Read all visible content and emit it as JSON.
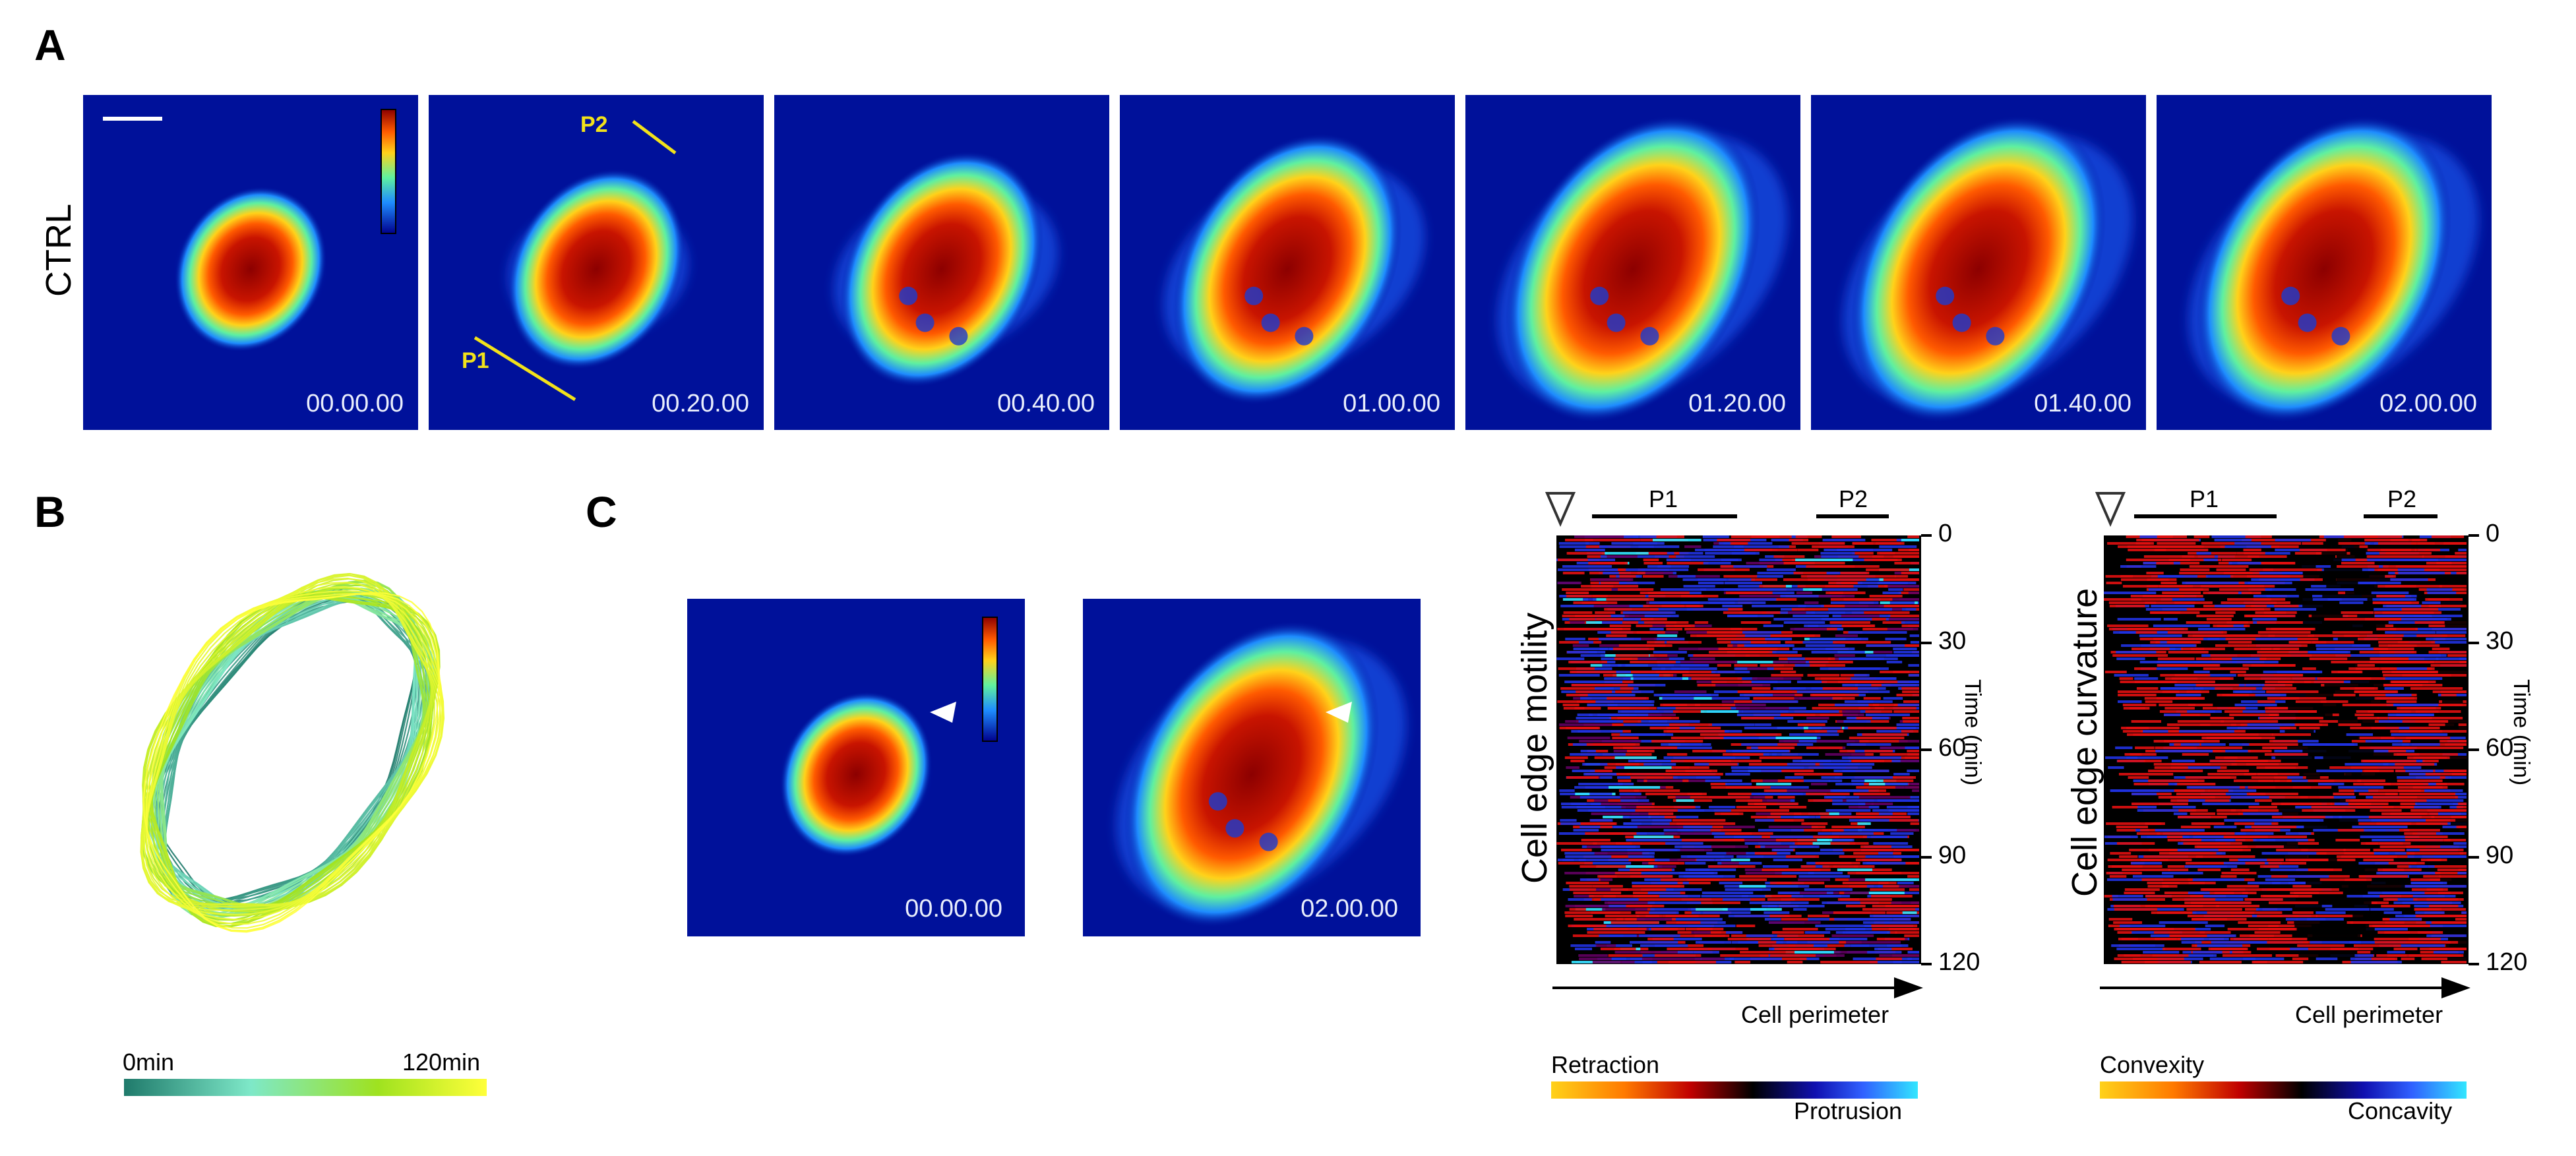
{
  "panels": {
    "A": "A",
    "B": "B",
    "C": "C"
  },
  "panelA": {
    "row_label": "CTRL",
    "timestamps": [
      "00.00.00",
      "00.20.00",
      "00.40.00",
      "01.00.00",
      "01.20.00",
      "01.40.00",
      "02.00.00"
    ],
    "p1": "P1",
    "p2": "P2"
  },
  "panelB": {
    "colorbar_start": "0min",
    "colorbar_end": "120min",
    "colors": [
      "#1f7a6b",
      "#7ee8c8",
      "#9fe21f",
      "#ffff3a"
    ]
  },
  "panelC": {
    "timestamps": [
      "00.00.00",
      "02.00.00"
    ],
    "motility": {
      "ylabel": "Cell edge motility",
      "p1": "P1",
      "p2": "P2",
      "time_label": "Time (min)",
      "ticks": [
        "0",
        "30",
        "60",
        "90",
        "120"
      ],
      "xlabel": "Cell perimeter",
      "cbar_left": "Retraction",
      "cbar_right": "Protrusion"
    },
    "curvature": {
      "ylabel": "Cell edge curvature",
      "p1": "P1",
      "p2": "P2",
      "time_label": "Time (min)",
      "ticks": [
        "0",
        "30",
        "60",
        "90",
        "120"
      ],
      "xlabel": "Cell perimeter",
      "cbar_left": "Convexity",
      "cbar_right": "Concavity"
    }
  }
}
